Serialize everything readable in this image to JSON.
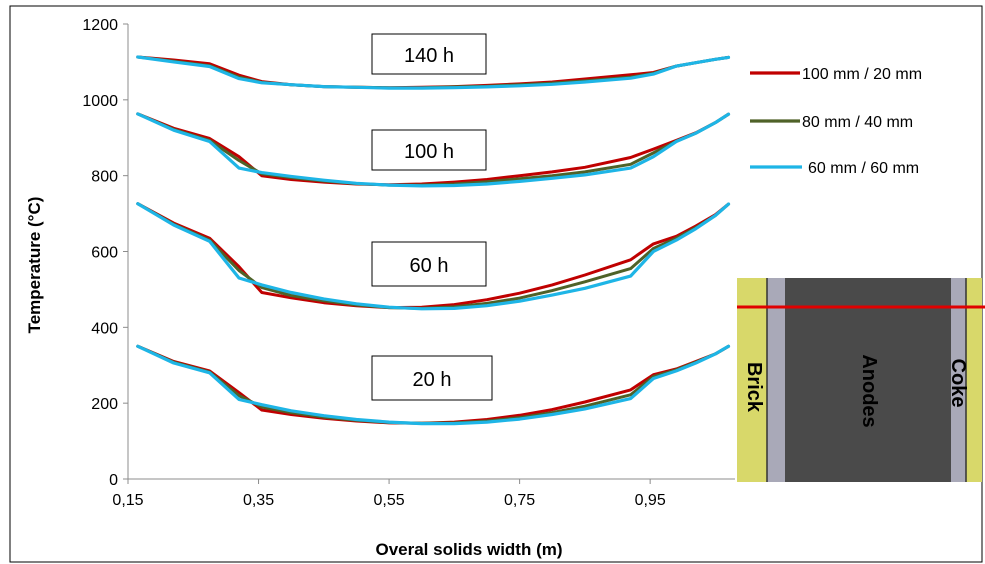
{
  "chart_data": {
    "type": "line",
    "xlabel": "Overal solids width (m)",
    "ylabel": "Temperature (°C)",
    "xlim": [
      0.15,
      1.08
    ],
    "ylim": [
      0,
      1200
    ],
    "x_ticks": [
      "0,15",
      "0,35",
      "0,55",
      "0,75",
      "0,95"
    ],
    "y_ticks": [
      "0",
      "200",
      "400",
      "600",
      "800",
      "1000",
      "1200"
    ],
    "grid": false,
    "legend_position": "right",
    "x": [
      0.165,
      0.22,
      0.275,
      0.32,
      0.355,
      0.4,
      0.45,
      0.5,
      0.55,
      0.6,
      0.65,
      0.7,
      0.75,
      0.8,
      0.85,
      0.92,
      0.955,
      0.99,
      1.02,
      1.05,
      1.07
    ],
    "groups": [
      {
        "label": "140 h",
        "series": [
          {
            "name": "100 mm / 20 mm",
            "color": "#c00000",
            "values": [
              1113,
              1105,
              1095,
              1065,
              1048,
              1040,
              1035,
              1033,
              1032,
              1033,
              1035,
              1038,
              1042,
              1047,
              1055,
              1066,
              1072,
              1089,
              1098,
              1107,
              1112
            ]
          },
          {
            "name": "80 mm / 40 mm",
            "color": "#4f6228",
            "values": [
              1113,
              1102,
              1090,
              1060,
              1046,
              1040,
              1035,
              1033,
              1032,
              1032,
              1034,
              1036,
              1040,
              1044,
              1050,
              1060,
              1070,
              1089,
              1098,
              1107,
              1112
            ]
          },
          {
            "name": "60 mm / 60 mm",
            "color": "#1eb5e6",
            "values": [
              1113,
              1100,
              1088,
              1056,
              1045,
              1040,
              1035,
              1033,
              1031,
              1031,
              1032,
              1034,
              1037,
              1041,
              1047,
              1057,
              1068,
              1089,
              1098,
              1107,
              1112
            ]
          }
        ]
      },
      {
        "label": "100 h",
        "series": [
          {
            "name": "100 mm / 20 mm",
            "color": "#c00000",
            "values": [
              963,
              925,
              898,
              850,
              800,
              790,
              783,
              778,
              776,
              778,
              783,
              790,
              800,
              810,
              822,
              848,
              870,
              893,
              913,
              940,
              962
            ]
          },
          {
            "name": "80 mm / 40 mm",
            "color": "#4f6228",
            "values": [
              963,
              922,
              893,
              840,
              805,
              795,
              786,
              779,
              775,
              775,
              778,
              784,
              792,
              800,
              810,
              830,
              860,
              891,
              912,
              940,
              962
            ]
          },
          {
            "name": "60 mm / 60 mm",
            "color": "#1eb5e6",
            "values": [
              963,
              920,
              890,
              820,
              808,
              798,
              788,
              780,
              775,
              773,
              774,
              778,
              785,
              793,
              802,
              820,
              850,
              890,
              912,
              940,
              962
            ]
          }
        ]
      },
      {
        "label": "60 h",
        "series": [
          {
            "name": "100 mm / 20 mm",
            "color": "#c00000",
            "values": [
              726,
              675,
              635,
              560,
              492,
              478,
              465,
              457,
              452,
              453,
              460,
              473,
              490,
              512,
              538,
              578,
              620,
              640,
              667,
              697,
              725
            ]
          },
          {
            "name": "80 mm / 40 mm",
            "color": "#4f6228",
            "values": [
              726,
              672,
              630,
              550,
              505,
              484,
              470,
              459,
              452,
              450,
              454,
              463,
              477,
              497,
              520,
              555,
              608,
              635,
              663,
              695,
              725
            ]
          },
          {
            "name": "60 mm / 60 mm",
            "color": "#1eb5e6",
            "values": [
              726,
              670,
              627,
              530,
              512,
              492,
              475,
              462,
              453,
              449,
              450,
              457,
              469,
              485,
              503,
              535,
              600,
              630,
              660,
              695,
              725
            ]
          }
        ]
      },
      {
        "label": "20 h",
        "series": [
          {
            "name": "100 mm / 20 mm",
            "color": "#c00000",
            "values": [
              350,
              310,
              285,
              228,
              182,
              170,
              160,
              153,
              148,
              147,
              150,
              157,
              168,
              183,
              203,
              235,
              275,
              290,
              310,
              330,
              350
            ]
          },
          {
            "name": "80 mm / 40 mm",
            "color": "#4f6228",
            "values": [
              350,
              308,
              282,
              220,
              190,
              175,
              163,
              155,
              149,
              147,
              148,
              153,
              162,
              175,
              192,
              222,
              270,
              288,
              308,
              330,
              350
            ]
          },
          {
            "name": "60 mm / 60 mm",
            "color": "#1eb5e6",
            "values": [
              350,
              306,
              280,
              210,
              196,
              180,
              167,
              157,
              150,
              146,
              146,
              150,
              158,
              170,
              185,
              212,
              265,
              285,
              306,
              330,
              350
            ]
          }
        ]
      }
    ],
    "legend": [
      {
        "name": "100 mm / 20 mm",
        "color": "#c00000"
      },
      {
        "name": "80 mm / 40 mm",
        "color": "#4f6228"
      },
      {
        "name": "60 mm / 60 mm",
        "color": "#1eb5e6"
      }
    ]
  },
  "inset": {
    "labels": {
      "brick": "Brick",
      "anodes": "Anodes",
      "coke": "Coke"
    },
    "colors": {
      "brick": "#d8d86a",
      "anodes": "#4a4a4a",
      "coke": "#a9a9b8",
      "marker_line": "#e00000"
    }
  }
}
